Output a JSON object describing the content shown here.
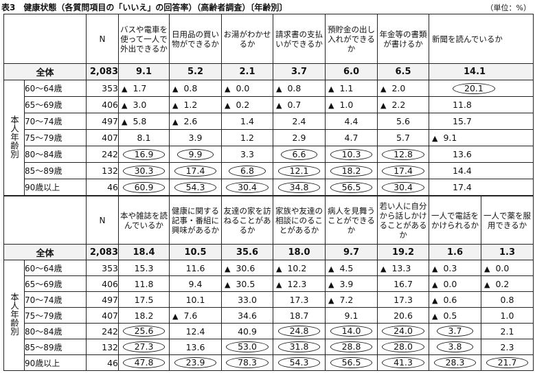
{
  "title": "表3　健康状態（各質問項目の「いいえ」の回答率）（高齢者調査）〔年齢別〕",
  "unit": "（単位：%）",
  "side_label": "本人年齢別",
  "table1": {
    "headers": [
      "N",
      "バスや電車を使って一人で外出できるか",
      "日用品の買い物ができるか",
      "お湯がわかせるか",
      "請求書の支払いができるか",
      "預貯金の出し入れができるか",
      "年金等の書類が書けるか",
      "新聞を読んでいるか"
    ],
    "total": {
      "label": "全体",
      "n": "2,083",
      "values": [
        "9.1",
        "5.2",
        "2.1",
        "3.7",
        "6.0",
        "6.5",
        "14.1"
      ]
    },
    "rows": [
      {
        "label": "60～64歳",
        "n": "353",
        "values": [
          {
            "v": "1.7",
            "m": "tri"
          },
          {
            "v": "0.8",
            "m": "tri"
          },
          {
            "v": "0.0",
            "m": "tri"
          },
          {
            "v": "0.8",
            "m": "tri"
          },
          {
            "v": "1.1",
            "m": "tri"
          },
          {
            "v": "2.0",
            "m": "tri"
          },
          {
            "v": "20.1",
            "m": "circle"
          }
        ]
      },
      {
        "label": "65～69歳",
        "n": "406",
        "values": [
          {
            "v": "3.0",
            "m": "tri"
          },
          {
            "v": "1.2",
            "m": "tri"
          },
          {
            "v": "0.2",
            "m": "tri"
          },
          {
            "v": "0.7",
            "m": "tri"
          },
          {
            "v": "1.0",
            "m": "tri"
          },
          {
            "v": "2.2",
            "m": "tri"
          },
          {
            "v": "11.8",
            "m": ""
          }
        ]
      },
      {
        "label": "70～74歳",
        "n": "497",
        "values": [
          {
            "v": "5.8",
            "m": "tri"
          },
          {
            "v": "2.6",
            "m": "tri"
          },
          {
            "v": "1.4",
            "m": ""
          },
          {
            "v": "2.4",
            "m": ""
          },
          {
            "v": "4.4",
            "m": ""
          },
          {
            "v": "5.6",
            "m": ""
          },
          {
            "v": "15.7",
            "m": ""
          }
        ]
      },
      {
        "label": "75～79歳",
        "n": "407",
        "values": [
          {
            "v": "8.1",
            "m": ""
          },
          {
            "v": "3.9",
            "m": ""
          },
          {
            "v": "1.2",
            "m": ""
          },
          {
            "v": "2.9",
            "m": ""
          },
          {
            "v": "4.7",
            "m": ""
          },
          {
            "v": "5.7",
            "m": ""
          },
          {
            "v": "9.1",
            "m": "tri"
          }
        ]
      },
      {
        "label": "80～84歳",
        "n": "242",
        "values": [
          {
            "v": "16.9",
            "m": "circle"
          },
          {
            "v": "9.9",
            "m": "circle"
          },
          {
            "v": "3.3",
            "m": ""
          },
          {
            "v": "6.6",
            "m": "circle"
          },
          {
            "v": "10.3",
            "m": "circle"
          },
          {
            "v": "12.8",
            "m": "circle"
          },
          {
            "v": "13.6",
            "m": ""
          }
        ]
      },
      {
        "label": "85～89歳",
        "n": "132",
        "values": [
          {
            "v": "30.3",
            "m": "circle"
          },
          {
            "v": "17.4",
            "m": "circle"
          },
          {
            "v": "6.8",
            "m": "circle"
          },
          {
            "v": "12.1",
            "m": "circle"
          },
          {
            "v": "18.2",
            "m": "circle"
          },
          {
            "v": "17.4",
            "m": "circle"
          },
          {
            "v": "14.4",
            "m": ""
          }
        ]
      },
      {
        "label": "90歳以上",
        "n": "46",
        "values": [
          {
            "v": "60.9",
            "m": "circle"
          },
          {
            "v": "54.3",
            "m": "circle"
          },
          {
            "v": "30.4",
            "m": "circle"
          },
          {
            "v": "34.8",
            "m": "circle"
          },
          {
            "v": "56.5",
            "m": "circle"
          },
          {
            "v": "30.4",
            "m": "circle"
          },
          {
            "v": "17.4",
            "m": ""
          }
        ]
      }
    ]
  },
  "table2": {
    "headers": [
      "N",
      "本や雑誌を読んでいるか",
      "健康に関する記事・番組に興味があるか",
      "友達の家を訪ねることがあるか",
      "家族や友達の相談にのることがあるか",
      "病人を見舞うことができるか",
      "若い人に自分から話しかけることがあるか",
      "一人で電話をかけられるか",
      "一人で薬を服用できるか"
    ],
    "total": {
      "label": "全体",
      "n": "2,083",
      "values": [
        "18.4",
        "10.5",
        "35.6",
        "18.0",
        "9.7",
        "19.2",
        "1.6",
        "1.3"
      ]
    },
    "rows": [
      {
        "label": "60～64歳",
        "n": "353",
        "values": [
          {
            "v": "15.3",
            "m": ""
          },
          {
            "v": "11.6",
            "m": ""
          },
          {
            "v": "30.6",
            "m": "tri"
          },
          {
            "v": "10.2",
            "m": "tri"
          },
          {
            "v": "4.5",
            "m": "tri"
          },
          {
            "v": "13.3",
            "m": "tri"
          },
          {
            "v": "0.3",
            "m": "tri"
          },
          {
            "v": "0.0",
            "m": "tri"
          }
        ]
      },
      {
        "label": "65～69歳",
        "n": "406",
        "values": [
          {
            "v": "11.8",
            "m": ""
          },
          {
            "v": "9.4",
            "m": ""
          },
          {
            "v": "30.5",
            "m": "tri"
          },
          {
            "v": "12.3",
            "m": "tri"
          },
          {
            "v": "3.9",
            "m": "tri"
          },
          {
            "v": "16.7",
            "m": ""
          },
          {
            "v": "0.0",
            "m": "tri"
          },
          {
            "v": "0.2",
            "m": "tri"
          }
        ]
      },
      {
        "label": "70～74歳",
        "n": "497",
        "values": [
          {
            "v": "17.5",
            "m": ""
          },
          {
            "v": "10.1",
            "m": ""
          },
          {
            "v": "33.0",
            "m": ""
          },
          {
            "v": "17.3",
            "m": ""
          },
          {
            "v": "7.2",
            "m": "tri"
          },
          {
            "v": "17.3",
            "m": ""
          },
          {
            "v": "0.6",
            "m": "tri"
          },
          {
            "v": "0.8",
            "m": ""
          }
        ]
      },
      {
        "label": "75～79歳",
        "n": "407",
        "values": [
          {
            "v": "18.2",
            "m": ""
          },
          {
            "v": "7.6",
            "m": "tri"
          },
          {
            "v": "34.6",
            "m": ""
          },
          {
            "v": "18.7",
            "m": ""
          },
          {
            "v": "9.1",
            "m": ""
          },
          {
            "v": "20.6",
            "m": ""
          },
          {
            "v": "0.5",
            "m": "tri"
          },
          {
            "v": "1.0",
            "m": ""
          }
        ]
      },
      {
        "label": "80～84歳",
        "n": "242",
        "values": [
          {
            "v": "25.6",
            "m": "circle"
          },
          {
            "v": "12.4",
            "m": ""
          },
          {
            "v": "40.9",
            "m": ""
          },
          {
            "v": "24.8",
            "m": "circle"
          },
          {
            "v": "14.0",
            "m": "circle"
          },
          {
            "v": "24.0",
            "m": "circle"
          },
          {
            "v": "3.7",
            "m": "circle"
          },
          {
            "v": "2.1",
            "m": ""
          }
        ]
      },
      {
        "label": "85～89歳",
        "n": "132",
        "values": [
          {
            "v": "27.3",
            "m": "circle"
          },
          {
            "v": "13.6",
            "m": ""
          },
          {
            "v": "53.0",
            "m": "circle"
          },
          {
            "v": "31.8",
            "m": "circle"
          },
          {
            "v": "28.8",
            "m": "circle"
          },
          {
            "v": "28.0",
            "m": "circle"
          },
          {
            "v": "3.8",
            "m": "circle"
          },
          {
            "v": "2.3",
            "m": ""
          }
        ]
      },
      {
        "label": "90歳以上",
        "n": "46",
        "values": [
          {
            "v": "47.8",
            "m": "circle"
          },
          {
            "v": "23.9",
            "m": "circle"
          },
          {
            "v": "78.3",
            "m": "circle"
          },
          {
            "v": "54.3",
            "m": "circle"
          },
          {
            "v": "56.5",
            "m": "circle"
          },
          {
            "v": "41.3",
            "m": "circle"
          },
          {
            "v": "28.3",
            "m": "circle"
          },
          {
            "v": "21.7",
            "m": "circle"
          }
        ]
      }
    ]
  }
}
